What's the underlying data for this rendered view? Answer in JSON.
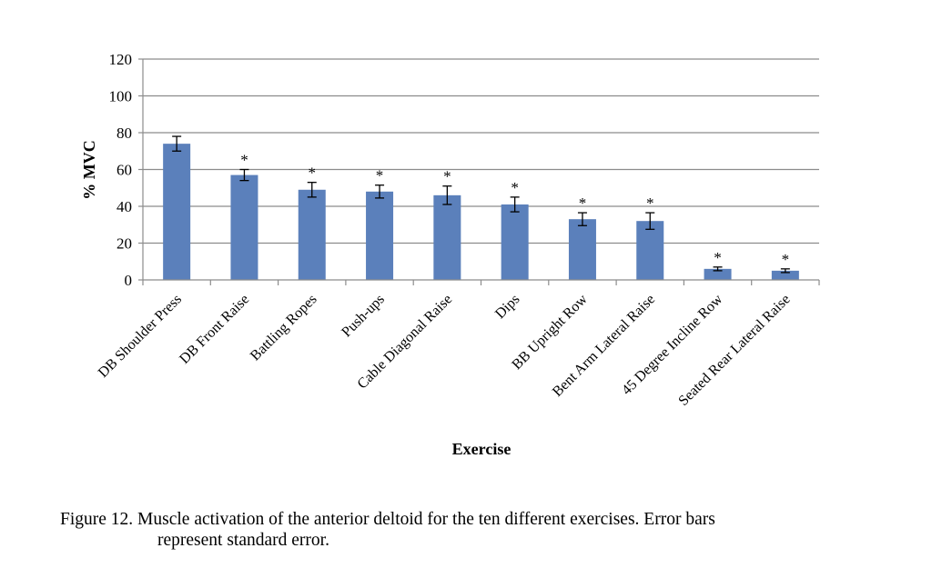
{
  "chart_data": {
    "type": "bar",
    "xlabel": "Exercise",
    "ylabel": "% MVC",
    "ylim": [
      0,
      120
    ],
    "yticks": [
      0,
      20,
      40,
      60,
      80,
      100,
      120
    ],
    "grid": "horizontal",
    "legend": "none",
    "bar_color": "#5b80bb",
    "categories": [
      "DB Shoulder Press",
      "DB Front Raise",
      "Battling Ropes",
      "Push-ups",
      "Cable Diagonal Raise",
      "Dips",
      "BB Upright Row",
      "Bent Arm Lateral Raise",
      "45 Degree Incline Row",
      "Seated Rear Lateral Raise"
    ],
    "values": [
      74,
      57,
      49,
      48,
      46,
      41,
      33,
      32,
      6,
      5
    ],
    "error": [
      4,
      3,
      4,
      3.5,
      5,
      4,
      3.5,
      4.5,
      1,
      1
    ],
    "markers": [
      "",
      "*",
      "*",
      "*",
      "*",
      "*",
      "*",
      "*",
      "*",
      "*"
    ]
  },
  "caption": {
    "line1": "Figure 12.  Muscle activation of the anterior deltoid for the ten different exercises. Error bars",
    "line2": "represent standard error."
  }
}
